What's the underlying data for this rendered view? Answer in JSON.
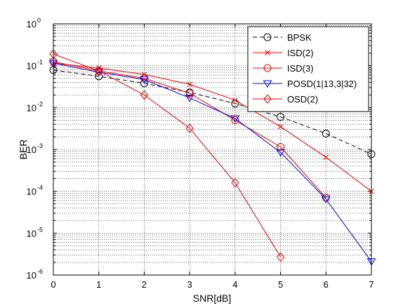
{
  "chart_data": {
    "type": "line",
    "xlabel": "SNR[dB]",
    "ylabel": "BER",
    "xlim": [
      0,
      7
    ],
    "ylim": [
      1e-06,
      1
    ],
    "yscale": "log",
    "grid": true,
    "legend_position": "top-right",
    "x_ticks": [
      "0",
      "1",
      "2",
      "3",
      "4",
      "5",
      "6",
      "7"
    ],
    "y_ticks": [
      {
        "base": "10",
        "exp": "0",
        "value": 1
      },
      {
        "base": "10",
        "exp": "-1",
        "value": 0.1
      },
      {
        "base": "10",
        "exp": "-2",
        "value": 0.01
      },
      {
        "base": "10",
        "exp": "-3",
        "value": 0.001
      },
      {
        "base": "10",
        "exp": "-4",
        "value": 0.0001
      },
      {
        "base": "10",
        "exp": "-5",
        "value": 1e-05
      },
      {
        "base": "10",
        "exp": "-6",
        "value": 1e-06
      }
    ],
    "series": [
      {
        "name": "BPSK",
        "color": "#000000",
        "dash": "dashed",
        "marker": "circle",
        "x": [
          0,
          1,
          2,
          3,
          4,
          5,
          6,
          7
        ],
        "y": [
          0.079,
          0.056,
          0.038,
          0.023,
          0.0125,
          0.006,
          0.0024,
          0.00077
        ]
      },
      {
        "name": "ISD(2)",
        "color": "#ff0000",
        "dash": "solid",
        "marker": "x",
        "x": [
          0,
          1,
          2,
          3,
          4,
          5,
          6,
          7
        ],
        "y": [
          0.115,
          0.088,
          0.062,
          0.036,
          0.015,
          0.0035,
          0.00065,
          0.0001
        ]
      },
      {
        "name": "ISD(3)",
        "color": "#ff0000",
        "dash": "solid",
        "marker": "circle",
        "x": [
          0,
          1,
          2,
          3,
          4,
          5,
          6
        ],
        "y": [
          0.125,
          0.075,
          0.05,
          0.022,
          0.005,
          0.00115,
          7e-05
        ]
      },
      {
        "name": "POSD(1|13,3|32)",
        "color": "#0000ff",
        "dash": "solid",
        "marker": "triangle-down",
        "x": [
          0,
          1,
          2,
          3,
          4,
          5,
          6,
          7
        ],
        "y": [
          0.115,
          0.07,
          0.047,
          0.017,
          0.0055,
          0.00085,
          6.5e-05,
          2.1e-06
        ]
      },
      {
        "name": "OSD(2)",
        "color": "#ff0000",
        "dash": "solid",
        "marker": "diamond",
        "x": [
          0,
          1,
          2,
          3,
          4,
          5
        ],
        "y": [
          0.19,
          0.075,
          0.02,
          0.0032,
          0.00016,
          2.7e-06
        ]
      }
    ]
  }
}
